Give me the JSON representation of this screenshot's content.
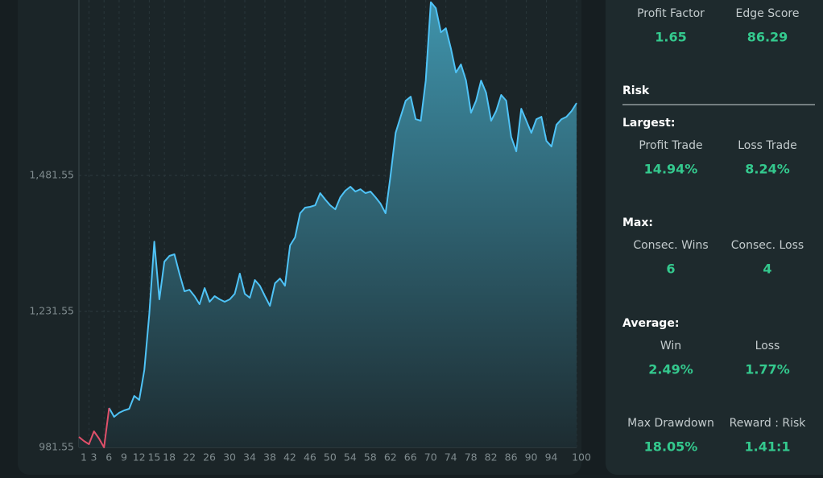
{
  "chart_data": {
    "type": "area",
    "categories": [
      1,
      null,
      3,
      null,
      null,
      6,
      null,
      null,
      9,
      null,
      null,
      12,
      null,
      null,
      15,
      null,
      null,
      18,
      null,
      null,
      null,
      22,
      null,
      null,
      null,
      26,
      null,
      null,
      null,
      30,
      null,
      null,
      null,
      34,
      null,
      null,
      null,
      38,
      null,
      null,
      null,
      42,
      null,
      null,
      null,
      46,
      null,
      null,
      null,
      50,
      null,
      null,
      null,
      54,
      null,
      null,
      null,
      58,
      null,
      null,
      null,
      62,
      null,
      null,
      null,
      66,
      null,
      null,
      null,
      70,
      null,
      null,
      null,
      74,
      null,
      null,
      null,
      78,
      null,
      null,
      null,
      82,
      null,
      null,
      null,
      86,
      null,
      null,
      null,
      90,
      null,
      null,
      null,
      94,
      null,
      null,
      null,
      null,
      null,
      100
    ],
    "series": [
      {
        "color": "#4fc3f7",
        "negative_color": "#e0506a",
        "values": [
          1000.8,
          993.4,
          987.5,
          1011.1,
          997.8,
          981.6,
          1054,
          1037.8,
          1045.2,
          1049.6,
          1052.5,
          1076.2,
          1068.8,
          1123.5,
          1227,
          1360,
          1253.7,
          1323,
          1333.6,
          1336.5,
          1301,
          1268.5,
          1271.4,
          1259.6,
          1244.8,
          1274.4,
          1249.3,
          1259.6,
          1253.7,
          1249.3,
          1253.7,
          1264,
          1301,
          1264,
          1256.7,
          1289.2,
          1278.8,
          1259.6,
          1241.9,
          1283.3,
          1292.1,
          1278.8,
          1352.8,
          1367.6,
          1412,
          1422.3,
          1423.8,
          1426.7,
          1449,
          1437.1,
          1426.7,
          1419.3,
          1441.5,
          1453.4,
          1460.8,
          1451.9,
          1456.3,
          1449,
          1451.9,
          1441.5,
          1429.7,
          1412,
          1481.5,
          1559.8,
          1589.4,
          1619,
          1626.4,
          1585,
          1582,
          1656,
          1800,
          1789,
          1744.7,
          1752.1,
          1715.1,
          1670.7,
          1685.6,
          1656,
          1596.8,
          1619,
          1656,
          1633.8,
          1582,
          1599.8,
          1629.4,
          1619,
          1552.4,
          1525.8,
          1604.2,
          1582,
          1559.8,
          1585,
          1589.4,
          1545,
          1534.6,
          1574.6,
          1585,
          1589.4,
          1599.8,
          1614.5
        ]
      }
    ],
    "ylim": [
      981.55,
      1804
    ],
    "yticks": [
      981.55,
      {
        "value": 1231.55,
        "label": "1,231.55"
      },
      {
        "value": 1481.55,
        "label": "1,481.55"
      }
    ],
    "grid": true
  },
  "stats": {
    "top": [
      {
        "label": "Profit Factor",
        "value": "1.65"
      },
      {
        "label": "Edge Score",
        "value": "86.29"
      }
    ],
    "risk": {
      "title": "Risk",
      "groups": [
        {
          "heading": "Largest:",
          "items": [
            {
              "label": "Profit Trade",
              "value": "14.94%"
            },
            {
              "label": "Loss Trade",
              "value": "8.24%"
            }
          ]
        },
        {
          "heading": "Max:",
          "items": [
            {
              "label": "Consec. Wins",
              "value": "6"
            },
            {
              "label": "Consec. Loss",
              "value": "4"
            }
          ]
        },
        {
          "heading": "Average:",
          "items": [
            {
              "label": "Win",
              "value": "2.49%"
            },
            {
              "label": "Loss",
              "value": "1.77%"
            }
          ]
        },
        {
          "items": [
            {
              "label": "Max Drawdown",
              "value": "18.05%"
            },
            {
              "label": "Reward : Risk",
              "value": "1.41:1"
            }
          ]
        }
      ]
    }
  }
}
